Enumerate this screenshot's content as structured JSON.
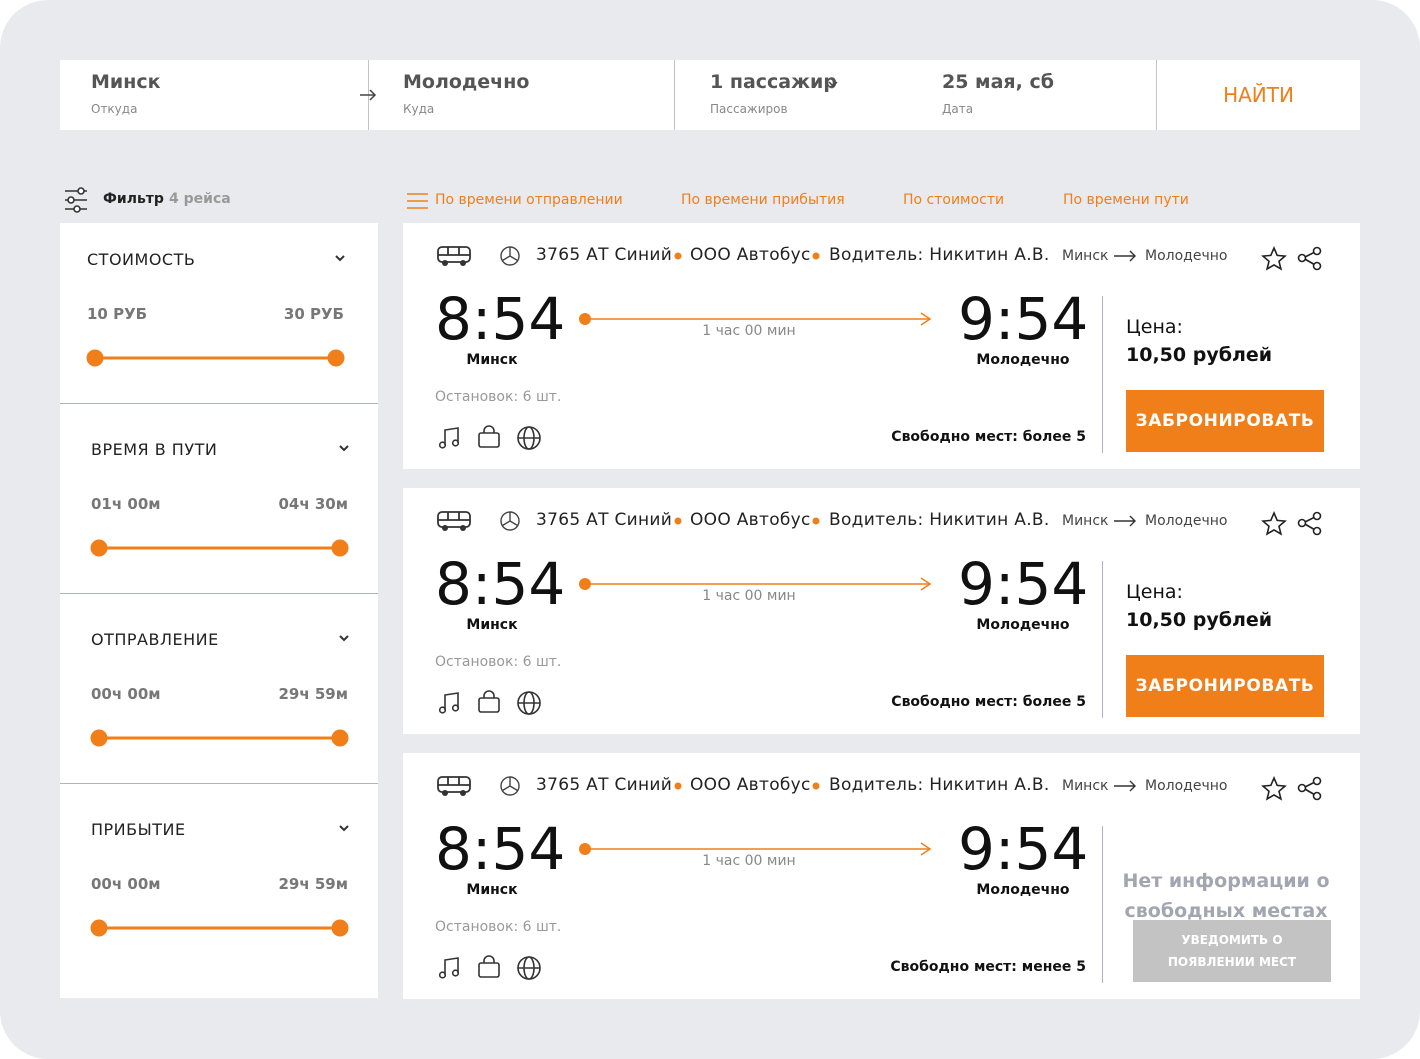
{
  "search": {
    "from": {
      "value": "Минск",
      "label": "Откуда"
    },
    "to": {
      "value": "Молодечно",
      "label": "Куда"
    },
    "passengers": {
      "value": "1 пассажир",
      "label": "Пассажиров"
    },
    "date": {
      "value": "25 мая, сб",
      "label": "Дата"
    },
    "button": "НАЙТИ"
  },
  "filter": {
    "title": "Фильтр",
    "count": "4 рейса",
    "groups": [
      {
        "title": "СТОИМОСТЬ",
        "min": "10 РУБ",
        "max": "30 РУБ"
      },
      {
        "title": "ВРЕМЯ В ПУТИ",
        "min": "01ч 00м",
        "max": "04ч 30м"
      },
      {
        "title": "ОТПРАВЛЕНИЕ",
        "min": "00ч 00м",
        "max": "29ч 59м"
      },
      {
        "title": "ПРИБЫТИЕ",
        "min": "00ч 00м",
        "max": "29ч 59м"
      }
    ]
  },
  "sort": [
    "По времени отправлении",
    "По времени прибытия",
    "По стоимости",
    "По времени пути"
  ],
  "trips": [
    {
      "bus": "3765 АТ Синий",
      "company": "ООО Автобус",
      "driver": "Водитель: Никитин А.В.",
      "route_from": "Минск",
      "route_to": "Молодечно",
      "depart": "8:54",
      "depart_city": "Минск",
      "duration": "1 час 00 мин",
      "arrive": "9:54",
      "arrive_city": "Молодечно",
      "stops": "Остановок: 6 шт.",
      "seats": "Свободно мест: более 5",
      "price_label": "Цена:",
      "price": "10,50 рублей",
      "button": "ЗАБРОНИРОВАТЬ"
    },
    {
      "bus": "3765 АТ Синий",
      "company": "ООО Автобус",
      "driver": "Водитель: Никитин А.В.",
      "route_from": "Минск",
      "route_to": "Молодечно",
      "depart": "8:54",
      "depart_city": "Минск",
      "duration": "1 час 00 мин",
      "arrive": "9:54",
      "arrive_city": "Молодечно",
      "stops": "Остановок: 6 шт.",
      "seats": "Свободно мест: более 5",
      "price_label": "Цена:",
      "price": "10,50 рублей",
      "button": "ЗАБРОНИРОВАТЬ"
    },
    {
      "bus": "3765 АТ Синий",
      "company": "ООО Автобус",
      "driver": "Водитель: Никитин А.В.",
      "route_from": "Минск",
      "route_to": "Молодечно",
      "depart": "8:54",
      "depart_city": "Минск",
      "duration": "1 час 00 мин",
      "arrive": "9:54",
      "arrive_city": "Молодечно",
      "stops": "Остановок: 6 шт.",
      "seats": "Свободно мест: менее 5",
      "no_info": "Нет информации о свободных местах",
      "notify_button": "УВЕДОМИТЬ О ПОЯВЛЕНИИ МЕСТ"
    }
  ]
}
